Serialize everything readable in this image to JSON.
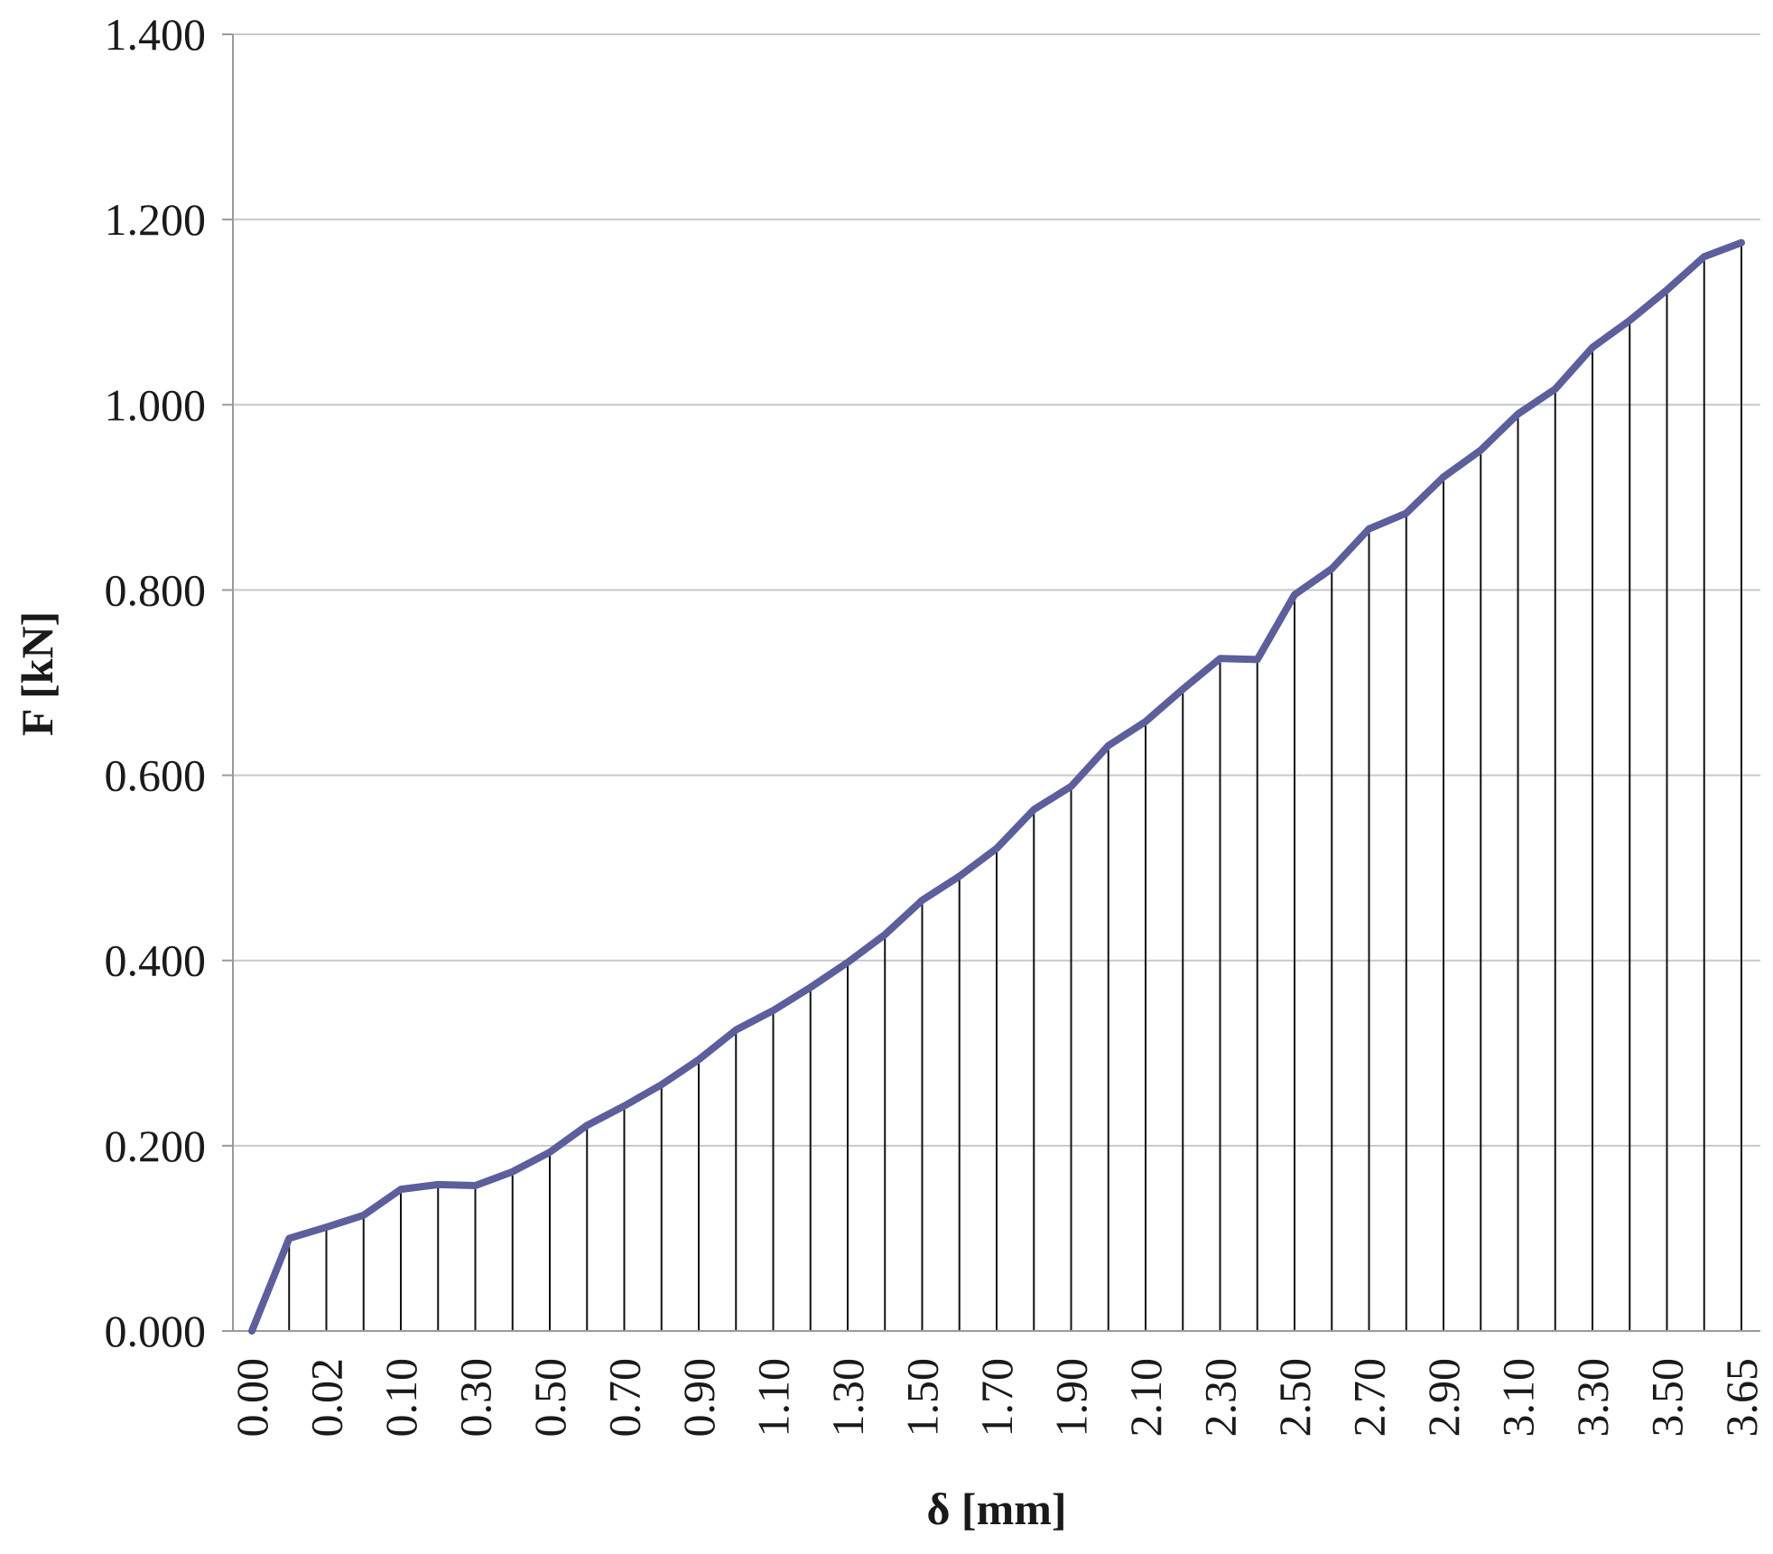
{
  "chart_data": {
    "type": "line",
    "xlabel": "δ [mm]",
    "ylabel": "F [kN]",
    "ylim": [
      0,
      1.4
    ],
    "y_ticks": [
      "0.000",
      "0.200",
      "0.400",
      "0.600",
      "0.800",
      "1.000",
      "1.200",
      "1.400"
    ],
    "x_tick_labels": [
      "0.00",
      "0.02",
      "0.10",
      "0.30",
      "0.50",
      "0.70",
      "0.90",
      "1.10",
      "1.30",
      "1.50",
      "1.70",
      "1.90",
      "2.10",
      "2.30",
      "2.50",
      "2.70",
      "2.90",
      "3.10",
      "3.30",
      "3.50",
      "3.65"
    ],
    "grid": "horizontal",
    "drop_lines": true,
    "line_color": "#5c5f9c",
    "series": [
      {
        "values": [
          0.0,
          0.1,
          0.112,
          0.125,
          0.153,
          0.158,
          0.157,
          0.172,
          0.193,
          0.222,
          0.243,
          0.266,
          0.293,
          0.325,
          0.346,
          0.371,
          0.398,
          0.428,
          0.465,
          0.491,
          0.521,
          0.563,
          0.588,
          0.632,
          0.658,
          0.693,
          0.726,
          0.725,
          0.795,
          0.823,
          0.866,
          0.883,
          0.922,
          0.951,
          0.99,
          1.017,
          1.062,
          1.091,
          1.124,
          1.16,
          1.175
        ]
      }
    ]
  }
}
